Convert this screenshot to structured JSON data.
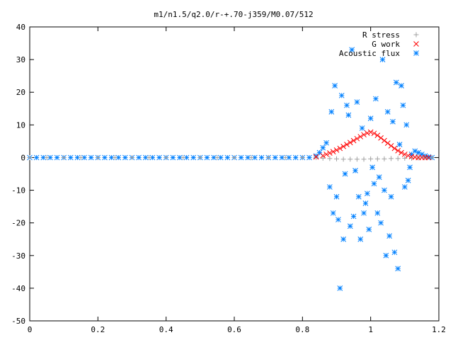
{
  "chart_data": {
    "type": "scatter",
    "title": "m1/n1.5/q2.0/r-+.70-j359/M0.07/512",
    "xlabel": "",
    "ylabel": "",
    "xlim": [
      0,
      1.2
    ],
    "ylim": [
      -50,
      40
    ],
    "x_ticks": [
      "0",
      "0.2",
      "0.4",
      "0.6",
      "0.8",
      "1",
      "1.2"
    ],
    "y_ticks": [
      "40",
      "30",
      "20",
      "10",
      "0",
      "-10",
      "-20",
      "-30",
      "-40",
      "-50"
    ],
    "legend_position": "top-right",
    "grid": false,
    "series": [
      {
        "name": "R stress",
        "marker": "+",
        "color": "#a0a0a0",
        "points": [
          [
            0.0,
            0
          ],
          [
            0.05,
            0
          ],
          [
            0.1,
            0
          ],
          [
            0.15,
            0
          ],
          [
            0.2,
            0
          ],
          [
            0.25,
            0
          ],
          [
            0.3,
            0
          ],
          [
            0.35,
            0
          ],
          [
            0.4,
            0
          ],
          [
            0.45,
            0
          ],
          [
            0.5,
            0
          ],
          [
            0.55,
            0
          ],
          [
            0.6,
            0
          ],
          [
            0.65,
            0
          ],
          [
            0.7,
            0
          ],
          [
            0.75,
            0
          ],
          [
            0.8,
            0
          ],
          [
            0.84,
            0
          ],
          [
            0.86,
            -0.2
          ],
          [
            0.88,
            -0.3
          ],
          [
            0.9,
            -0.4
          ],
          [
            0.92,
            -0.5
          ],
          [
            0.94,
            -0.5
          ],
          [
            0.96,
            -0.5
          ],
          [
            0.98,
            -0.5
          ],
          [
            1.0,
            -0.4
          ],
          [
            1.02,
            -0.4
          ],
          [
            1.04,
            -0.4
          ],
          [
            1.06,
            -0.3
          ],
          [
            1.08,
            -0.3
          ],
          [
            1.1,
            -0.2
          ],
          [
            1.12,
            -0.2
          ],
          [
            1.14,
            -0.1
          ],
          [
            1.16,
            0
          ],
          [
            1.18,
            0
          ]
        ]
      },
      {
        "name": "G work",
        "marker": "x",
        "color": "#ff0000",
        "points": [
          [
            0.84,
            0.2
          ],
          [
            0.86,
            0.6
          ],
          [
            0.87,
            1.0
          ],
          [
            0.88,
            1.4
          ],
          [
            0.89,
            1.8
          ],
          [
            0.9,
            2.3
          ],
          [
            0.91,
            2.8
          ],
          [
            0.92,
            3.4
          ],
          [
            0.93,
            4.0
          ],
          [
            0.94,
            4.6
          ],
          [
            0.95,
            5.2
          ],
          [
            0.96,
            5.8
          ],
          [
            0.97,
            6.4
          ],
          [
            0.98,
            7.0
          ],
          [
            0.99,
            7.5
          ],
          [
            1.0,
            7.8
          ],
          [
            1.01,
            7.4
          ],
          [
            1.02,
            6.8
          ],
          [
            1.03,
            6.0
          ],
          [
            1.04,
            5.2
          ],
          [
            1.05,
            4.4
          ],
          [
            1.06,
            3.6
          ],
          [
            1.07,
            2.8
          ],
          [
            1.08,
            2.1
          ],
          [
            1.09,
            1.5
          ],
          [
            1.1,
            1.0
          ],
          [
            1.11,
            0.6
          ],
          [
            1.12,
            0.3
          ],
          [
            1.13,
            0.1
          ],
          [
            1.14,
            0.0
          ],
          [
            1.15,
            0.0
          ],
          [
            1.16,
            0.0
          ],
          [
            1.17,
            0.0
          ]
        ]
      },
      {
        "name": "Acoustic flux",
        "marker": "*",
        "color": "#0080ff",
        "points": [
          [
            0.0,
            0
          ],
          [
            0.02,
            0
          ],
          [
            0.04,
            0
          ],
          [
            0.06,
            0
          ],
          [
            0.08,
            0
          ],
          [
            0.1,
            0
          ],
          [
            0.12,
            0
          ],
          [
            0.14,
            0
          ],
          [
            0.16,
            0
          ],
          [
            0.18,
            0
          ],
          [
            0.2,
            0
          ],
          [
            0.22,
            0
          ],
          [
            0.24,
            0
          ],
          [
            0.26,
            0
          ],
          [
            0.28,
            0
          ],
          [
            0.3,
            0
          ],
          [
            0.32,
            0
          ],
          [
            0.34,
            0
          ],
          [
            0.36,
            0
          ],
          [
            0.38,
            0
          ],
          [
            0.4,
            0
          ],
          [
            0.42,
            0
          ],
          [
            0.44,
            0
          ],
          [
            0.46,
            0
          ],
          [
            0.48,
            0
          ],
          [
            0.5,
            0
          ],
          [
            0.52,
            0
          ],
          [
            0.54,
            0
          ],
          [
            0.56,
            0
          ],
          [
            0.58,
            0
          ],
          [
            0.6,
            0
          ],
          [
            0.62,
            0
          ],
          [
            0.64,
            0
          ],
          [
            0.66,
            0
          ],
          [
            0.68,
            0
          ],
          [
            0.7,
            0
          ],
          [
            0.72,
            0
          ],
          [
            0.74,
            0
          ],
          [
            0.76,
            0
          ],
          [
            0.78,
            0
          ],
          [
            0.8,
            0
          ],
          [
            0.82,
            0
          ],
          [
            0.84,
            0.5
          ],
          [
            0.85,
            1.5
          ],
          [
            0.86,
            3.0
          ],
          [
            0.87,
            4.5
          ],
          [
            0.88,
            -9
          ],
          [
            0.885,
            14
          ],
          [
            0.89,
            -17
          ],
          [
            0.895,
            22
          ],
          [
            0.9,
            -12
          ],
          [
            0.905,
            -19
          ],
          [
            0.91,
            -40
          ],
          [
            0.915,
            19
          ],
          [
            0.92,
            -25
          ],
          [
            0.925,
            -5
          ],
          [
            0.93,
            16
          ],
          [
            0.935,
            13
          ],
          [
            0.94,
            -21
          ],
          [
            0.945,
            33
          ],
          [
            0.95,
            -18
          ],
          [
            0.955,
            -4
          ],
          [
            0.96,
            17
          ],
          [
            0.965,
            -12
          ],
          [
            0.97,
            -25
          ],
          [
            0.975,
            9
          ],
          [
            0.98,
            -17
          ],
          [
            0.985,
            -14
          ],
          [
            0.99,
            -11
          ],
          [
            0.995,
            -22
          ],
          [
            1.0,
            12
          ],
          [
            1.005,
            -3
          ],
          [
            1.01,
            -8
          ],
          [
            1.015,
            18
          ],
          [
            1.02,
            -17
          ],
          [
            1.025,
            -6
          ],
          [
            1.03,
            -20
          ],
          [
            1.035,
            30
          ],
          [
            1.04,
            -10
          ],
          [
            1.045,
            -30
          ],
          [
            1.05,
            14
          ],
          [
            1.055,
            -24
          ],
          [
            1.06,
            -12
          ],
          [
            1.065,
            11
          ],
          [
            1.07,
            -29
          ],
          [
            1.075,
            23
          ],
          [
            1.08,
            -34
          ],
          [
            1.085,
            4
          ],
          [
            1.09,
            22
          ],
          [
            1.095,
            16
          ],
          [
            1.1,
            -9
          ],
          [
            1.105,
            10
          ],
          [
            1.11,
            -7
          ],
          [
            1.115,
            -3
          ],
          [
            1.12,
            1
          ],
          [
            1.13,
            2
          ],
          [
            1.14,
            1.5
          ],
          [
            1.15,
            1.0
          ],
          [
            1.16,
            0.5
          ],
          [
            1.17,
            0.2
          ],
          [
            1.18,
            0
          ]
        ]
      }
    ]
  }
}
